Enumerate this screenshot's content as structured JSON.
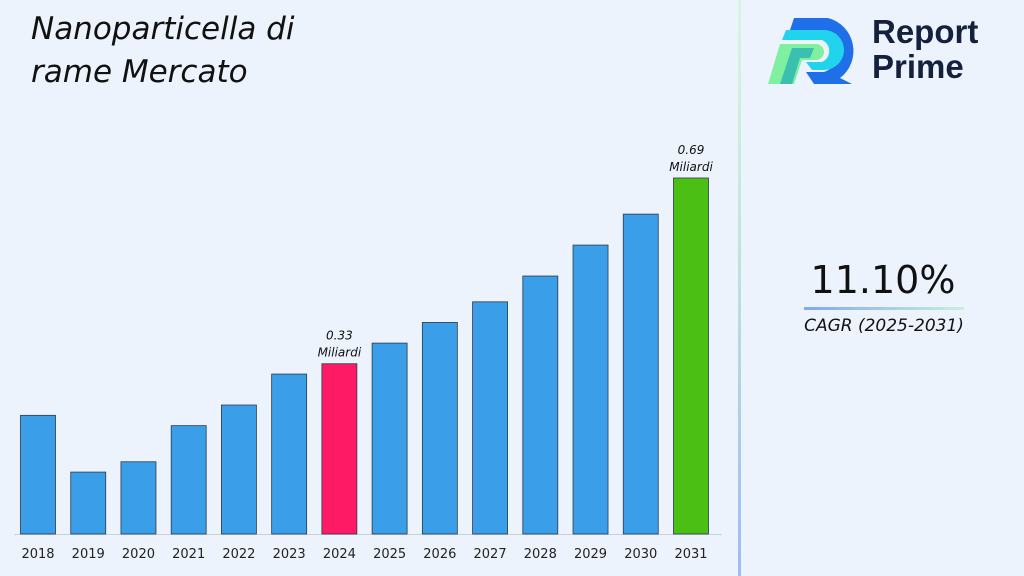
{
  "title": "Nanoparticella di rame Mercato",
  "logo": {
    "line1": "Report",
    "line2": "Prime"
  },
  "cagr": {
    "value": "11.10%",
    "label": "CAGR (2025-2031)"
  },
  "colors": {
    "default_bar": "#3a9fe8",
    "highlight_2024": "#ff1a66",
    "highlight_2031": "#4cbf14"
  },
  "chart_data": {
    "type": "bar",
    "title": "Nanoparticella di rame Mercato",
    "categories": [
      "2018",
      "2019",
      "2020",
      "2021",
      "2022",
      "2023",
      "2024",
      "2025",
      "2026",
      "2027",
      "2028",
      "2029",
      "2030",
      "2031"
    ],
    "values": [
      0.23,
      0.12,
      0.14,
      0.21,
      0.25,
      0.31,
      0.33,
      0.37,
      0.41,
      0.45,
      0.5,
      0.56,
      0.62,
      0.69
    ],
    "unit": "Miliardi",
    "data_labels": [
      {
        "category": "2024",
        "value": "0.33",
        "unit": "Miliardi"
      },
      {
        "category": "2031",
        "value": "0.69",
        "unit": "Miliardi"
      }
    ],
    "grid": false,
    "legend": "none",
    "ylim": [
      0,
      0.69
    ]
  }
}
